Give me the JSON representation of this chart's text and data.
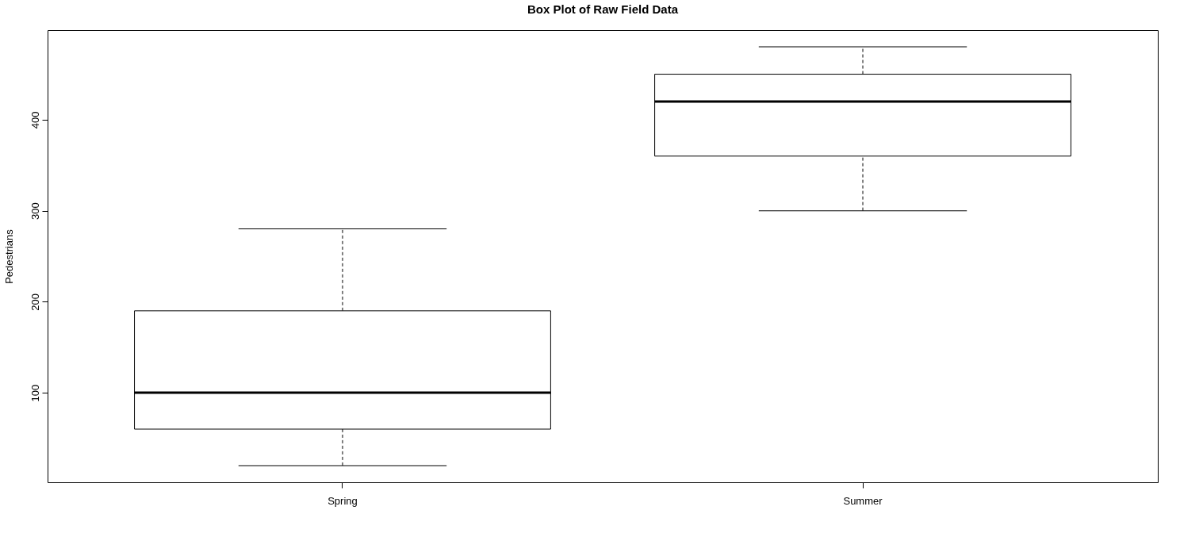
{
  "chart_data": {
    "type": "box",
    "title": "Box Plot of Raw Field Data",
    "ylabel": "Pedestrians",
    "categories": [
      "Spring",
      "Summer"
    ],
    "boxes": [
      {
        "low": 20,
        "q1": 60,
        "median": 100,
        "q3": 190,
        "high": 280
      },
      {
        "low": 300,
        "q1": 360,
        "median": 420,
        "q3": 450,
        "high": 480
      }
    ],
    "ylim": [
      1.6,
      498.4
    ],
    "yticks": [
      100,
      200,
      300,
      400
    ],
    "grid": false
  }
}
